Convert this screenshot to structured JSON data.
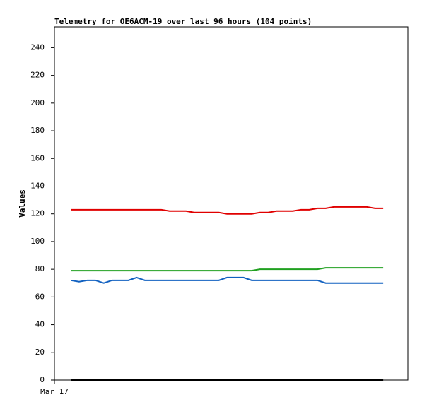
{
  "chart_data": {
    "type": "line",
    "title": "Telemetry for OE6ACM-19 over last 96 hours (104 points)",
    "y_label": "Values",
    "categories": [
      "Mar 17",
      null,
      null,
      null,
      null,
      null,
      null,
      null,
      null,
      null,
      null,
      null,
      null,
      null,
      null,
      null,
      null,
      null,
      null,
      null,
      null,
      null,
      null,
      null,
      null,
      null,
      null,
      null,
      null,
      null,
      null,
      null,
      null,
      null,
      null,
      null,
      null,
      null,
      null,
      null,
      null,
      null,
      null,
      null
    ],
    "ylim": [
      0,
      255
    ],
    "yticks": [
      0,
      20,
      40,
      60,
      80,
      100,
      120,
      140,
      160,
      180,
      200,
      220,
      240
    ],
    "grid": false,
    "series": [
      {
        "color": "#e00000",
        "values": [
          null,
          null,
          123,
          123,
          123,
          123,
          123,
          123,
          123,
          123,
          123,
          123,
          123,
          123,
          122,
          122,
          122,
          121,
          121,
          121,
          121,
          120,
          120,
          120,
          120,
          121,
          121,
          122,
          122,
          122,
          123,
          123,
          124,
          124,
          125,
          125,
          125,
          125,
          125,
          124,
          124,
          null,
          null,
          null
        ]
      },
      {
        "color": "#20a020",
        "values": [
          null,
          null,
          79,
          79,
          79,
          79,
          79,
          79,
          79,
          79,
          79,
          79,
          79,
          79,
          79,
          79,
          79,
          79,
          79,
          79,
          79,
          79,
          79,
          79,
          79,
          80,
          80,
          80,
          80,
          80,
          80,
          80,
          80,
          81,
          81,
          81,
          81,
          81,
          81,
          81,
          81,
          null,
          null,
          null
        ]
      },
      {
        "color": "#1060c0",
        "values": [
          null,
          null,
          72,
          71,
          72,
          72,
          70,
          72,
          72,
          72,
          74,
          72,
          72,
          72,
          72,
          72,
          72,
          72,
          72,
          72,
          72,
          74,
          74,
          74,
          72,
          72,
          72,
          72,
          72,
          72,
          72,
          72,
          72,
          70,
          70,
          70,
          70,
          70,
          70,
          70,
          70,
          null,
          null,
          null
        ]
      },
      {
        "color": "#000000",
        "values": [
          null,
          null,
          0,
          0,
          0,
          0,
          0,
          0,
          0,
          0,
          0,
          0,
          0,
          0,
          0,
          0,
          0,
          0,
          0,
          0,
          0,
          0,
          0,
          0,
          0,
          0,
          0,
          0,
          0,
          0,
          0,
          0,
          0,
          0,
          0,
          0,
          0,
          0,
          0,
          0,
          0,
          null,
          null,
          null
        ]
      }
    ]
  }
}
